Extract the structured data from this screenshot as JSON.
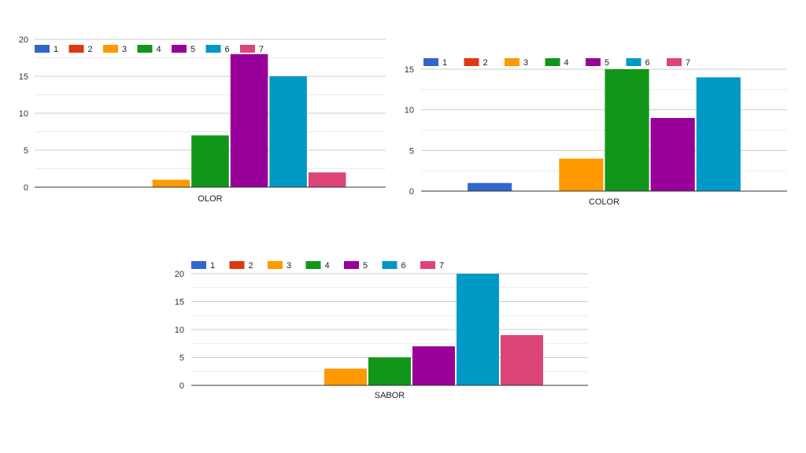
{
  "colors": {
    "1": "#3366cc",
    "2": "#dc3912",
    "3": "#ff9900",
    "4": "#109618",
    "5": "#990099",
    "6": "#0099c6",
    "7": "#dd4477",
    "grid": "#cccccc",
    "minor_grid": "#ebebeb",
    "axis": "#333333"
  },
  "chart_data": [
    {
      "type": "bar",
      "categories": [
        "OLOR"
      ],
      "series": [
        {
          "name": "1",
          "values": [
            0
          ]
        },
        {
          "name": "2",
          "values": [
            0
          ]
        },
        {
          "name": "3",
          "values": [
            1
          ]
        },
        {
          "name": "4",
          "values": [
            7
          ]
        },
        {
          "name": "5",
          "values": [
            18
          ]
        },
        {
          "name": "6",
          "values": [
            15
          ]
        },
        {
          "name": "7",
          "values": [
            2
          ]
        }
      ],
      "yticks": [
        0,
        5,
        10,
        15,
        20
      ],
      "ylim": [
        0,
        20
      ],
      "grid": true,
      "legend": "top-left"
    },
    {
      "type": "bar",
      "categories": [
        "COLOR"
      ],
      "series": [
        {
          "name": "1",
          "values": [
            1
          ]
        },
        {
          "name": "2",
          "values": [
            0
          ]
        },
        {
          "name": "3",
          "values": [
            4
          ]
        },
        {
          "name": "4",
          "values": [
            15
          ]
        },
        {
          "name": "5",
          "values": [
            9
          ]
        },
        {
          "name": "6",
          "values": [
            14
          ]
        },
        {
          "name": "7",
          "values": [
            0
          ]
        }
      ],
      "yticks": [
        0,
        5,
        10,
        15
      ],
      "ylim": [
        0,
        15
      ],
      "grid": true,
      "legend": "top-left"
    },
    {
      "type": "bar",
      "categories": [
        "SABOR"
      ],
      "series": [
        {
          "name": "1",
          "values": [
            0
          ]
        },
        {
          "name": "2",
          "values": [
            0
          ]
        },
        {
          "name": "3",
          "values": [
            3
          ]
        },
        {
          "name": "4",
          "values": [
            5
          ]
        },
        {
          "name": "5",
          "values": [
            7
          ]
        },
        {
          "name": "6",
          "values": [
            20
          ]
        },
        {
          "name": "7",
          "values": [
            9
          ]
        }
      ],
      "yticks": [
        0,
        5,
        10,
        15,
        20
      ],
      "ylim": [
        0,
        20
      ],
      "grid": true,
      "legend": "top-left"
    }
  ]
}
